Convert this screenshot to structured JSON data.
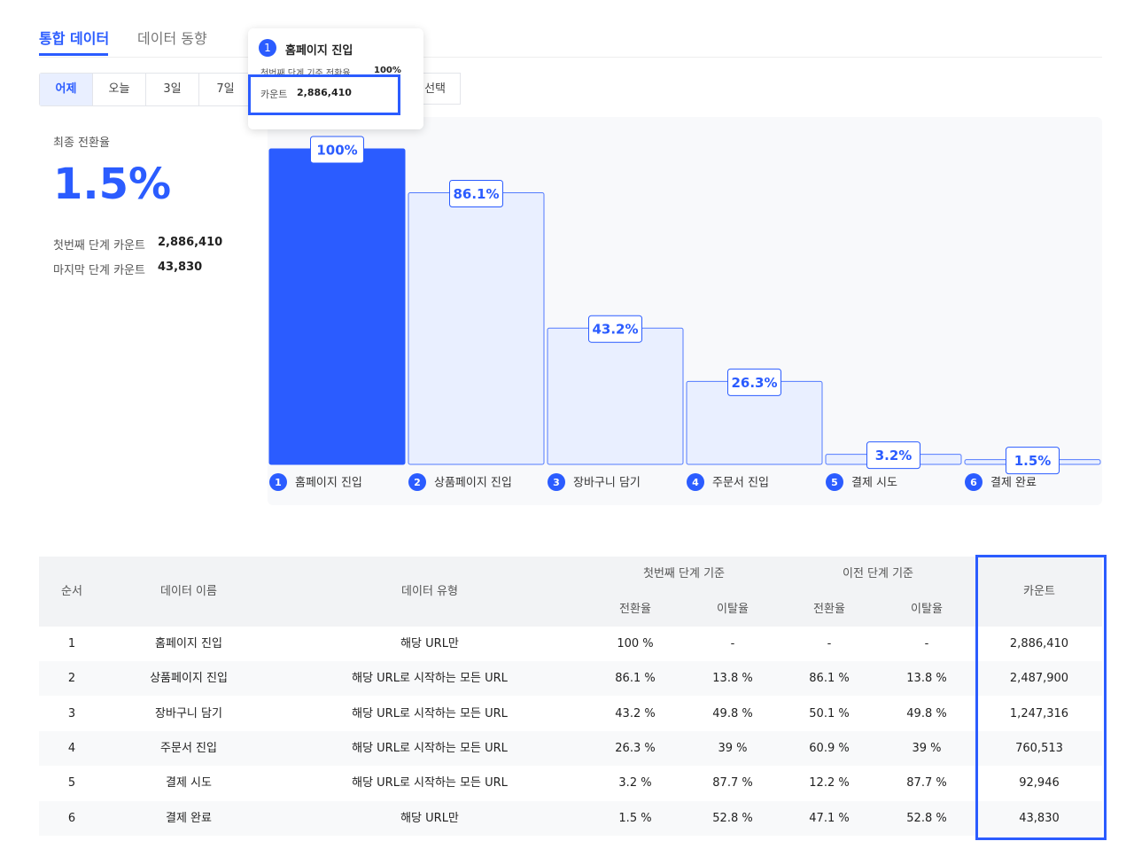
{
  "tabs": [
    "통합 데이터",
    "데이터 동향"
  ],
  "ranges": [
    "어제",
    "오늘",
    "3일",
    "7일"
  ],
  "range_select": "선택",
  "summary": {
    "label": "최종 전환율",
    "value": "1.5%",
    "first_label": "첫번째 단계 카운트",
    "first_value": "2,886,410",
    "last_label": "마지막 단계 카운트",
    "last_value": "43,830"
  },
  "tooltip": {
    "step": "1",
    "title": "홈페이지 진입",
    "rate_label": "첫번째 단계 기준 전환율",
    "rate": "100%",
    "count_label": "카운트",
    "count": "2,886,410"
  },
  "chart_data": {
    "type": "bar",
    "categories": [
      "홈페이지 진입",
      "상품페이지 진입",
      "장바구니 담기",
      "주문서 진입",
      "결제 시도",
      "결제 완료"
    ],
    "steps": [
      "1",
      "2",
      "3",
      "4",
      "5",
      "6"
    ],
    "values": [
      100,
      86.1,
      43.2,
      26.3,
      3.2,
      1.5
    ],
    "value_labels": [
      "100%",
      "86.1%",
      "43.2%",
      "26.3%",
      "3.2%",
      "1.5%"
    ],
    "ylim": [
      0,
      100
    ],
    "color": "#2b5cff",
    "light_color": "#e9efff"
  },
  "table": {
    "columns": [
      "순서",
      "데이터 이름",
      "데이터 유형"
    ],
    "groups": [
      {
        "title": "첫번째 단계 기준",
        "sub": [
          "전환율",
          "이탈율"
        ]
      },
      {
        "title": "이전 단계 기준",
        "sub": [
          "전환율",
          "이탈율"
        ]
      }
    ],
    "count_header": "카운트",
    "rows": [
      [
        "1",
        "홈페이지 진입",
        "해당 URL만",
        "100 %",
        "-",
        "-",
        "-",
        "2,886,410"
      ],
      [
        "2",
        "상품페이지 진입",
        "해당 URL로 시작하는 모든 URL",
        "86.1 %",
        "13.8 %",
        "86.1 %",
        "13.8 %",
        "2,487,900"
      ],
      [
        "3",
        "장바구니 담기",
        "해당 URL로 시작하는 모든 URL",
        "43.2 %",
        "49.8 %",
        "50.1 %",
        "49.8 %",
        "1,247,316"
      ],
      [
        "4",
        "주문서 진입",
        "해당 URL로 시작하는 모든 URL",
        "26.3 %",
        "39 %",
        "60.9 %",
        "39 %",
        "760,513"
      ],
      [
        "5",
        "결제 시도",
        "해당 URL로 시작하는 모든 URL",
        "3.2 %",
        "87.7 %",
        "12.2 %",
        "87.7 %",
        "92,946"
      ],
      [
        "6",
        "결제 완료",
        "해당 URL만",
        "1.5 %",
        "52.8 %",
        "47.1 %",
        "52.8 %",
        "43,830"
      ]
    ]
  }
}
